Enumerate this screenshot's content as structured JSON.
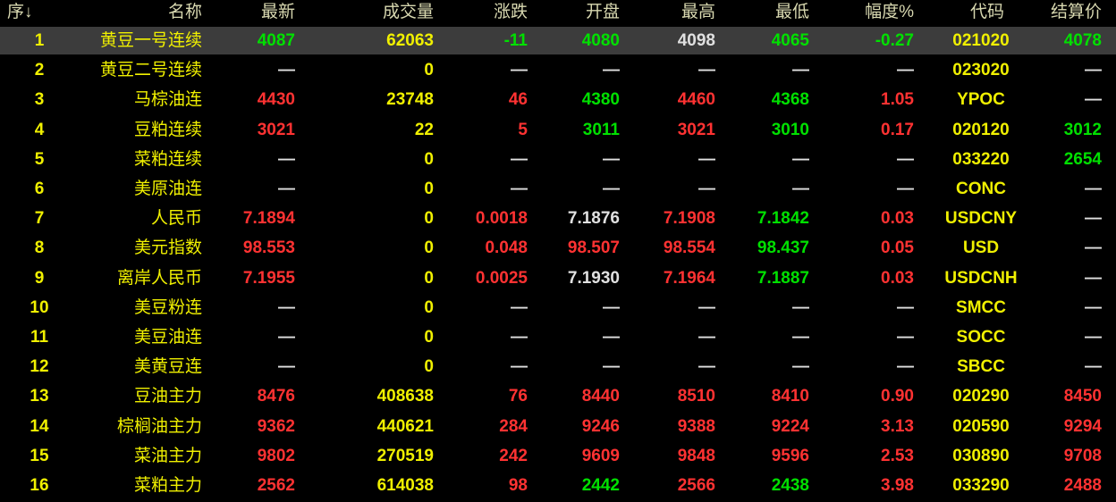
{
  "table": {
    "header": [
      "序↓",
      "名称",
      "最新",
      "成交量",
      "涨跌",
      "开盘",
      "最高",
      "最低",
      "幅度%",
      "代码",
      "结算价"
    ],
    "rows": [
      {
        "cells": [
          "1",
          "黄豆一号连续",
          "4087",
          "62063",
          "-11",
          "4080",
          "4098",
          "4065",
          "-0.27",
          "021020",
          "4078"
        ],
        "colors": [
          "#f0f000",
          "#f0f000",
          "#00e000",
          "#f0f000",
          "#00e000",
          "#00e000",
          "#e0e0e0",
          "#00e000",
          "#00e000",
          "#f0f000",
          "#00e000"
        ]
      },
      {
        "cells": [
          "2",
          "黄豆二号连续",
          "—",
          "0",
          "—",
          "—",
          "—",
          "—",
          "—",
          "023020",
          "—"
        ],
        "colors": [
          "#f0f000",
          "#f0f000",
          "#e0e0e0",
          "#f0f000",
          "#e0e0e0",
          "#e0e0e0",
          "#e0e0e0",
          "#e0e0e0",
          "#e0e0e0",
          "#f0f000",
          "#e0e0e0"
        ]
      },
      {
        "cells": [
          "3",
          "马棕油连",
          "4430",
          "23748",
          "46",
          "4380",
          "4460",
          "4368",
          "1.05",
          "YPOC",
          "—"
        ],
        "colors": [
          "#f0f000",
          "#f0f000",
          "#ff3232",
          "#f0f000",
          "#ff3232",
          "#00e000",
          "#ff3232",
          "#00e000",
          "#ff3232",
          "#f0f000",
          "#e0e0e0"
        ]
      },
      {
        "cells": [
          "4",
          "豆粕连续",
          "3021",
          "22",
          "5",
          "3011",
          "3021",
          "3010",
          "0.17",
          "020120",
          "3012"
        ],
        "colors": [
          "#f0f000",
          "#f0f000",
          "#ff3232",
          "#f0f000",
          "#ff3232",
          "#00e000",
          "#ff3232",
          "#00e000",
          "#ff3232",
          "#f0f000",
          "#00e000"
        ]
      },
      {
        "cells": [
          "5",
          "菜粕连续",
          "—",
          "0",
          "—",
          "—",
          "—",
          "—",
          "—",
          "033220",
          "2654"
        ],
        "colors": [
          "#f0f000",
          "#f0f000",
          "#e0e0e0",
          "#f0f000",
          "#e0e0e0",
          "#e0e0e0",
          "#e0e0e0",
          "#e0e0e0",
          "#e0e0e0",
          "#f0f000",
          "#00e000"
        ]
      },
      {
        "cells": [
          "6",
          "美原油连",
          "—",
          "0",
          "—",
          "—",
          "—",
          "—",
          "—",
          "CONC",
          "—"
        ],
        "colors": [
          "#f0f000",
          "#f0f000",
          "#e0e0e0",
          "#f0f000",
          "#e0e0e0",
          "#e0e0e0",
          "#e0e0e0",
          "#e0e0e0",
          "#e0e0e0",
          "#f0f000",
          "#e0e0e0"
        ]
      },
      {
        "cells": [
          "7",
          "人民币",
          "7.1894",
          "0",
          "0.0018",
          "7.1876",
          "7.1908",
          "7.1842",
          "0.03",
          "USDCNY",
          "—"
        ],
        "colors": [
          "#f0f000",
          "#f0f000",
          "#ff3232",
          "#f0f000",
          "#ff3232",
          "#e0e0e0",
          "#ff3232",
          "#00e000",
          "#ff3232",
          "#f0f000",
          "#e0e0e0"
        ]
      },
      {
        "cells": [
          "8",
          "美元指数",
          "98.553",
          "0",
          "0.048",
          "98.507",
          "98.554",
          "98.437",
          "0.05",
          "USD",
          "—"
        ],
        "colors": [
          "#f0f000",
          "#f0f000",
          "#ff3232",
          "#f0f000",
          "#ff3232",
          "#ff3232",
          "#ff3232",
          "#00e000",
          "#ff3232",
          "#f0f000",
          "#e0e0e0"
        ]
      },
      {
        "cells": [
          "9",
          "离岸人民币",
          "7.1955",
          "0",
          "0.0025",
          "7.1930",
          "7.1964",
          "7.1887",
          "0.03",
          "USDCNH",
          "—"
        ],
        "colors": [
          "#f0f000",
          "#f0f000",
          "#ff3232",
          "#f0f000",
          "#ff3232",
          "#e0e0e0",
          "#ff3232",
          "#00e000",
          "#ff3232",
          "#f0f000",
          "#e0e0e0"
        ]
      },
      {
        "cells": [
          "10",
          "美豆粉连",
          "—",
          "0",
          "—",
          "—",
          "—",
          "—",
          "—",
          "SMCC",
          "—"
        ],
        "colors": [
          "#f0f000",
          "#f0f000",
          "#e0e0e0",
          "#f0f000",
          "#e0e0e0",
          "#e0e0e0",
          "#e0e0e0",
          "#e0e0e0",
          "#e0e0e0",
          "#f0f000",
          "#e0e0e0"
        ]
      },
      {
        "cells": [
          "11",
          "美豆油连",
          "—",
          "0",
          "—",
          "—",
          "—",
          "—",
          "—",
          "SOCC",
          "—"
        ],
        "colors": [
          "#f0f000",
          "#f0f000",
          "#e0e0e0",
          "#f0f000",
          "#e0e0e0",
          "#e0e0e0",
          "#e0e0e0",
          "#e0e0e0",
          "#e0e0e0",
          "#f0f000",
          "#e0e0e0"
        ]
      },
      {
        "cells": [
          "12",
          "美黄豆连",
          "—",
          "0",
          "—",
          "—",
          "—",
          "—",
          "—",
          "SBCC",
          "—"
        ],
        "colors": [
          "#f0f000",
          "#f0f000",
          "#e0e0e0",
          "#f0f000",
          "#e0e0e0",
          "#e0e0e0",
          "#e0e0e0",
          "#e0e0e0",
          "#e0e0e0",
          "#f0f000",
          "#e0e0e0"
        ]
      },
      {
        "cells": [
          "13",
          "豆油主力",
          "8476",
          "408638",
          "76",
          "8440",
          "8510",
          "8410",
          "0.90",
          "020290",
          "8450"
        ],
        "colors": [
          "#f0f000",
          "#f0f000",
          "#ff3232",
          "#f0f000",
          "#ff3232",
          "#ff3232",
          "#ff3232",
          "#ff3232",
          "#ff3232",
          "#f0f000",
          "#ff3232"
        ]
      },
      {
        "cells": [
          "14",
          "棕榈油主力",
          "9362",
          "440621",
          "284",
          "9246",
          "9388",
          "9224",
          "3.13",
          "020590",
          "9294"
        ],
        "colors": [
          "#f0f000",
          "#f0f000",
          "#ff3232",
          "#f0f000",
          "#ff3232",
          "#ff3232",
          "#ff3232",
          "#ff3232",
          "#ff3232",
          "#f0f000",
          "#ff3232"
        ]
      },
      {
        "cells": [
          "15",
          "菜油主力",
          "9802",
          "270519",
          "242",
          "9609",
          "9848",
          "9596",
          "2.53",
          "030890",
          "9708"
        ],
        "colors": [
          "#f0f000",
          "#f0f000",
          "#ff3232",
          "#f0f000",
          "#ff3232",
          "#ff3232",
          "#ff3232",
          "#ff3232",
          "#ff3232",
          "#f0f000",
          "#ff3232"
        ]
      },
      {
        "cells": [
          "16",
          "菜粕主力",
          "2562",
          "614038",
          "98",
          "2442",
          "2566",
          "2438",
          "3.98",
          "033290",
          "2488"
        ],
        "colors": [
          "#f0f000",
          "#f0f000",
          "#ff3232",
          "#f0f000",
          "#ff3232",
          "#00e000",
          "#ff3232",
          "#00e000",
          "#ff3232",
          "#f0f000",
          "#ff3232"
        ]
      }
    ]
  }
}
